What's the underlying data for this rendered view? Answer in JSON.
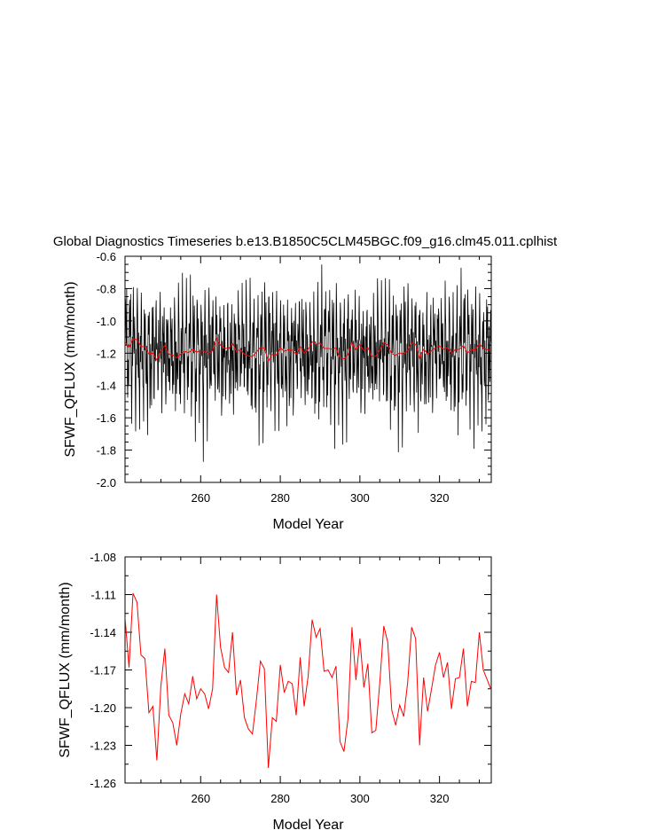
{
  "page": {
    "background": "#ffffff"
  },
  "figure_title": "Global Diagnostics Timeseries b.e13.B1850C5CLM45BGC.f09_g16.clm45.011.cplhist",
  "chart_data": [
    {
      "type": "line",
      "ylabel": "SFWF_QFLUX (mm/month)",
      "xlabel": "Model Year",
      "xlim": [
        241,
        333
      ],
      "ylim": [
        -2.0,
        -0.6
      ],
      "xticks": [
        260,
        280,
        300,
        320
      ],
      "xtick_labels": [
        "260",
        "280",
        "300",
        "320"
      ],
      "yticks": [
        -2.0,
        -1.8,
        -1.6,
        -1.4,
        -1.2,
        -1.0,
        -0.8,
        -0.6
      ],
      "ytick_labels": [
        "-2.0",
        "-1.8",
        "-1.6",
        "-1.4",
        "-1.2",
        "-1.0",
        "-0.8",
        "-0.6"
      ],
      "grid": false,
      "series": [
        {
          "role": "monthly",
          "color": "#000000",
          "sampling": "monthly, start year 241",
          "annual_amplitude": 0.28,
          "values": [
            -1.15,
            -0.86,
            -1.08,
            -1.42,
            -1.33,
            -0.62,
            -1.07,
            -1.27,
            -1.48,
            -1.16,
            -0.98,
            -1.39,
            -1.12,
            -0.91,
            -1.03,
            -1.37,
            -1.29,
            -0.71,
            -1.03,
            -1.22,
            -1.55,
            -1.11,
            -0.95,
            -1.34,
            -1.17,
            -0.84,
            -1.09,
            -1.41,
            -1.25,
            -0.78,
            -1.1,
            -1.3,
            -1.62,
            -1.14,
            -0.97,
            -1.4,
            -1.21,
            -0.89,
            -1.12,
            -1.45,
            -1.31,
            -0.8,
            -1.13,
            -1.28,
            -1.85,
            -1.18,
            -1.01,
            -1.43,
            -1.2,
            -0.92,
            -1.1,
            -1.44,
            -1.27,
            -0.85,
            -1.12,
            -1.26,
            -1.69,
            -1.16,
            -1.0,
            -1.42,
            -1.22,
            -0.94,
            -1.13,
            -1.47,
            -1.33,
            -0.88,
            -1.15,
            -1.3,
            -1.91,
            -1.19,
            -1.02,
            -1.45,
            -1.21,
            -0.9,
            -1.11,
            -1.46,
            -1.3,
            -0.84,
            -1.13,
            -1.29,
            -1.82,
            -1.17,
            -1.0,
            -1.44
          ]
        },
        {
          "role": "annual-mean",
          "color": "#ff0000",
          "x": [
            241,
            242,
            243,
            244,
            245,
            246,
            247,
            248,
            249,
            250,
            251,
            252,
            253,
            254,
            255,
            256,
            257,
            258,
            259,
            260,
            261,
            262,
            263,
            264,
            265,
            266,
            267,
            268,
            269,
            270,
            271,
            272,
            273,
            274,
            275,
            276,
            277,
            278,
            279,
            280,
            281,
            282,
            283,
            284,
            285,
            286,
            287,
            288,
            289,
            290,
            291,
            292,
            293,
            294,
            295,
            296,
            297,
            298,
            299,
            300,
            301,
            302,
            303,
            304,
            305,
            306,
            307,
            308,
            309,
            310,
            311,
            312,
            313,
            314,
            315,
            316,
            317,
            318,
            319,
            320,
            321,
            322,
            323,
            324,
            325,
            326,
            327,
            328,
            329,
            330,
            331,
            332,
            333
          ],
          "values": [
            -1.128,
            -1.168,
            -1.109,
            -1.116,
            -1.158,
            -1.161,
            -1.204,
            -1.199,
            -1.242,
            -1.183,
            -1.153,
            -1.206,
            -1.212,
            -1.23,
            -1.205,
            -1.189,
            -1.197,
            -1.175,
            -1.193,
            -1.185,
            -1.189,
            -1.201,
            -1.185,
            -1.11,
            -1.152,
            -1.168,
            -1.172,
            -1.14,
            -1.19,
            -1.178,
            -1.208,
            -1.217,
            -1.221,
            -1.194,
            -1.163,
            -1.169,
            -1.248,
            -1.208,
            -1.211,
            -1.166,
            -1.188,
            -1.179,
            -1.181,
            -1.206,
            -1.16,
            -1.199,
            -1.175,
            -1.13,
            -1.144,
            -1.137,
            -1.171,
            -1.17,
            -1.176,
            -1.167,
            -1.227,
            -1.235,
            -1.209,
            -1.136,
            -1.178,
            -1.145,
            -1.184,
            -1.165,
            -1.22,
            -1.218,
            -1.18,
            -1.135,
            -1.148,
            -1.202,
            -1.214,
            -1.198,
            -1.207,
            -1.18,
            -1.136,
            -1.145,
            -1.23,
            -1.176,
            -1.203,
            -1.185,
            -1.166,
            -1.156,
            -1.176,
            -1.164,
            -1.201,
            -1.177,
            -1.176,
            -1.153,
            -1.199,
            -1.179,
            -1.18,
            -1.14,
            -1.17,
            -1.178,
            -1.186
          ]
        }
      ]
    },
    {
      "type": "line",
      "ylabel": "SFWF_QFLUX (mm/month)",
      "xlabel": "Model Year",
      "xlim": [
        241,
        333
      ],
      "ylim": [
        -1.26,
        -1.08
      ],
      "xticks": [
        260,
        280,
        300,
        320
      ],
      "xtick_labels": [
        "260",
        "280",
        "300",
        "320"
      ],
      "yticks": [
        -1.26,
        -1.23,
        -1.2,
        -1.17,
        -1.14,
        -1.11,
        -1.08
      ],
      "ytick_labels": [
        "-1.26",
        "-1.23",
        "-1.20",
        "-1.17",
        "-1.14",
        "-1.11",
        "-1.08"
      ],
      "grid": false,
      "series": [
        {
          "role": "annual-mean",
          "color": "#ff0000",
          "x": [
            241,
            242,
            243,
            244,
            245,
            246,
            247,
            248,
            249,
            250,
            251,
            252,
            253,
            254,
            255,
            256,
            257,
            258,
            259,
            260,
            261,
            262,
            263,
            264,
            265,
            266,
            267,
            268,
            269,
            270,
            271,
            272,
            273,
            274,
            275,
            276,
            277,
            278,
            279,
            280,
            281,
            282,
            283,
            284,
            285,
            286,
            287,
            288,
            289,
            290,
            291,
            292,
            293,
            294,
            295,
            296,
            297,
            298,
            299,
            300,
            301,
            302,
            303,
            304,
            305,
            306,
            307,
            308,
            309,
            310,
            311,
            312,
            313,
            314,
            315,
            316,
            317,
            318,
            319,
            320,
            321,
            322,
            323,
            324,
            325,
            326,
            327,
            328,
            329,
            330,
            331,
            332,
            333
          ],
          "values": [
            -1.128,
            -1.168,
            -1.109,
            -1.116,
            -1.158,
            -1.161,
            -1.204,
            -1.199,
            -1.242,
            -1.183,
            -1.153,
            -1.206,
            -1.212,
            -1.23,
            -1.205,
            -1.189,
            -1.197,
            -1.175,
            -1.193,
            -1.185,
            -1.189,
            -1.201,
            -1.185,
            -1.11,
            -1.152,
            -1.168,
            -1.172,
            -1.14,
            -1.19,
            -1.178,
            -1.208,
            -1.217,
            -1.221,
            -1.194,
            -1.163,
            -1.169,
            -1.248,
            -1.208,
            -1.211,
            -1.166,
            -1.188,
            -1.179,
            -1.181,
            -1.206,
            -1.16,
            -1.199,
            -1.175,
            -1.13,
            -1.144,
            -1.137,
            -1.171,
            -1.17,
            -1.176,
            -1.167,
            -1.227,
            -1.235,
            -1.209,
            -1.136,
            -1.178,
            -1.145,
            -1.184,
            -1.165,
            -1.22,
            -1.218,
            -1.18,
            -1.135,
            -1.148,
            -1.202,
            -1.214,
            -1.198,
            -1.207,
            -1.18,
            -1.136,
            -1.145,
            -1.23,
            -1.176,
            -1.203,
            -1.185,
            -1.166,
            -1.156,
            -1.176,
            -1.164,
            -1.201,
            -1.177,
            -1.176,
            -1.153,
            -1.199,
            -1.179,
            -1.18,
            -1.14,
            -1.17,
            -1.178,
            -1.186
          ]
        }
      ]
    }
  ]
}
